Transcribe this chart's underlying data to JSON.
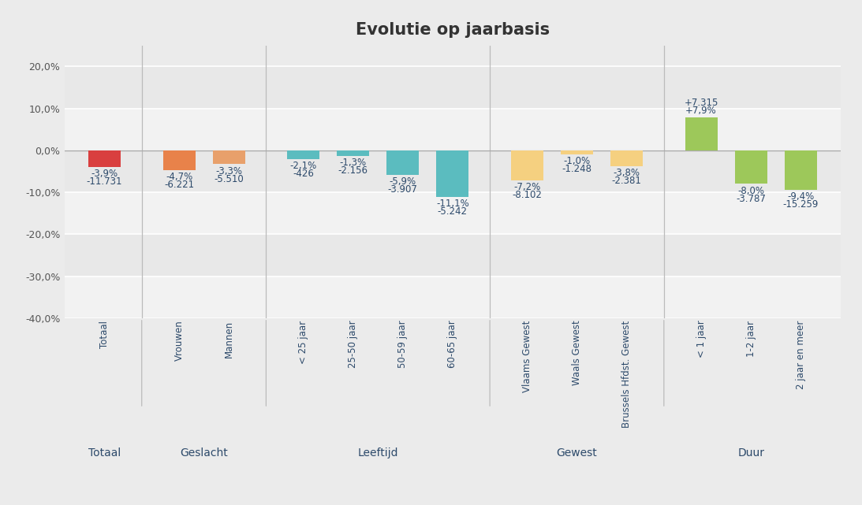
{
  "title": "Evolutie op jaarbasis",
  "bars": [
    {
      "label": "Totaal",
      "pct": -3.9,
      "abs_val": -11731,
      "abs_str": "-11.731",
      "pct_str": "-3,9%",
      "color": "#d93f3f",
      "group": "Totaal"
    },
    {
      "label": "Vrouwen",
      "pct": -4.7,
      "abs_val": -6221,
      "abs_str": "-6.221",
      "pct_str": "-4,7%",
      "color": "#e8824a",
      "group": "Geslacht"
    },
    {
      "label": "Mannen",
      "pct": -3.3,
      "abs_val": -5510,
      "abs_str": "-5.510",
      "pct_str": "-3,3%",
      "color": "#e8a06b",
      "group": "Geslacht"
    },
    {
      "label": "< 25 jaar",
      "pct": -2.1,
      "abs_val": -426,
      "abs_str": "-426",
      "pct_str": "-2,1%",
      "color": "#5bbcbf",
      "group": "Leeftijd"
    },
    {
      "label": "25-50 jaar",
      "pct": -1.3,
      "abs_val": -2156,
      "abs_str": "-2.156",
      "pct_str": "-1,3%",
      "color": "#5bbcbf",
      "group": "Leeftijd"
    },
    {
      "label": "50-59 jaar",
      "pct": -5.9,
      "abs_val": -3907,
      "abs_str": "-3.907",
      "pct_str": "-5,9%",
      "color": "#5bbcbf",
      "group": "Leeftijd"
    },
    {
      "label": "60-65 jaar",
      "pct": -11.1,
      "abs_val": -5242,
      "abs_str": "-5.242",
      "pct_str": "-11,1%",
      "color": "#5bbcbf",
      "group": "Leeftijd"
    },
    {
      "label": "Vlaams Gewest",
      "pct": -7.2,
      "abs_val": -8102,
      "abs_str": "-8.102",
      "pct_str": "-7,2%",
      "color": "#f5d080",
      "group": "Gewest"
    },
    {
      "label": "Waals Gewest",
      "pct": -1.0,
      "abs_val": -1248,
      "abs_str": "-1.248",
      "pct_str": "-1,0%",
      "color": "#f5d080",
      "group": "Gewest"
    },
    {
      "label": "Brussels Hfdst. Gewest",
      "pct": -3.8,
      "abs_val": -2381,
      "abs_str": "-2.381",
      "pct_str": "-3,8%",
      "color": "#f5d080",
      "group": "Gewest"
    },
    {
      "label": "< 1 jaar",
      "pct": 7.9,
      "abs_val": 7315,
      "abs_str": "+7.315",
      "pct_str": "+7,9%",
      "color": "#9dc85a",
      "group": "Duur"
    },
    {
      "label": "1-2 jaar",
      "pct": -8.0,
      "abs_val": -3787,
      "abs_str": "-3.787",
      "pct_str": "-8,0%",
      "color": "#9dc85a",
      "group": "Duur"
    },
    {
      "label": "2 jaar en meer",
      "pct": -9.4,
      "abs_val": -15259,
      "abs_str": "-15.259",
      "pct_str": "-9,4%",
      "color": "#9dc85a",
      "group": "Duur"
    }
  ],
  "group_labels": [
    {
      "name": "Totaal",
      "bar_indices": [
        0
      ]
    },
    {
      "name": "Geslacht",
      "bar_indices": [
        1,
        2
      ]
    },
    {
      "name": "Leeftijd",
      "bar_indices": [
        3,
        4,
        5,
        6
      ]
    },
    {
      "name": "Gewest",
      "bar_indices": [
        7,
        8,
        9
      ]
    },
    {
      "name": "Duur",
      "bar_indices": [
        10,
        11,
        12
      ]
    }
  ],
  "separator_after_indices": [
    0,
    2,
    6,
    9
  ],
  "ylim": [
    -40,
    25
  ],
  "yticks": [
    20,
    10,
    0,
    -10,
    -20,
    -30,
    -40
  ],
  "band_colors": [
    "#e8e8e8",
    "#f2f2f2",
    "#e8e8e8",
    "#f2f2f2",
    "#e8e8e8",
    "#f2f2f2"
  ],
  "background_color": "#ebebeb",
  "bar_width": 0.65,
  "title_fontsize": 15,
  "label_fontsize": 8.5,
  "group_label_fontsize": 10,
  "tick_fontsize": 9,
  "text_color": "#2d4a6b",
  "tick_color": "#555555"
}
